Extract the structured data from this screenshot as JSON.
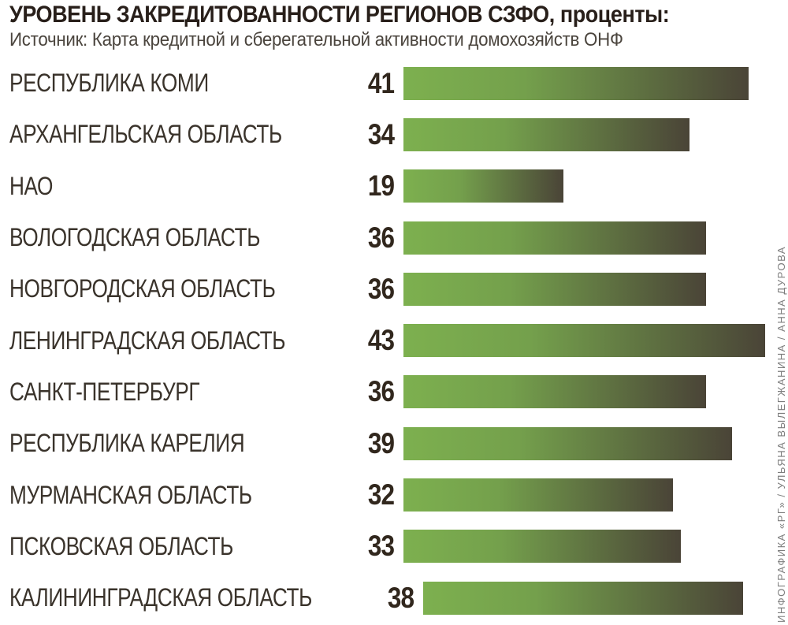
{
  "chart_data": {
    "type": "bar",
    "orientation": "horizontal",
    "title": "УРОВЕНЬ ЗАКРЕДИТОВАННОСТИ РЕГИОНОВ СЗФО, проценты:",
    "source": "Источник: Карта кредитной и сберегательной активности домохозяйств ОНФ",
    "categories": [
      "РЕСПУБЛИКА КОМИ",
      "АРХАНГЕЛЬСКАЯ ОБЛАСТЬ",
      "НАО",
      "ВОЛОГОДСКАЯ ОБЛАСТЬ",
      "НОВГОРОДСКАЯ ОБЛАСТЬ",
      "ЛЕНИНГРАДСКАЯ ОБЛАСТЬ",
      "САНКТ-ПЕТЕРБУРГ",
      "РЕСПУБЛИКА КАРЕЛИЯ",
      "МУРМАНСКАЯ ОБЛАСТЬ",
      "ПСКОВСКАЯ ОБЛАСТЬ",
      "КАЛИНИНГРАДСКАЯ ОБЛАСТЬ"
    ],
    "values": [
      41,
      34,
      19,
      36,
      36,
      43,
      36,
      39,
      32,
      33,
      38
    ],
    "unit": "проценты",
    "xlim": [
      0,
      45
    ],
    "grid": false,
    "legend": false,
    "value_labels_position": "left-of-bar"
  },
  "credit": "ИНФОГРАФИКА «РГ» / УЛЬЯНА ВЫЛЕГЖАНИНА / АННА ДУРОВА",
  "colors": {
    "bar_gradient_start": "#7db04f",
    "bar_gradient_mid": "#74a04c",
    "bar_gradient_end": "#4a4437",
    "title": "#281f1a",
    "subtitle": "#4b453e",
    "label": "#3a332b",
    "number": "#31271d",
    "credit": "#7d7d7d",
    "background": "#ffffff"
  }
}
